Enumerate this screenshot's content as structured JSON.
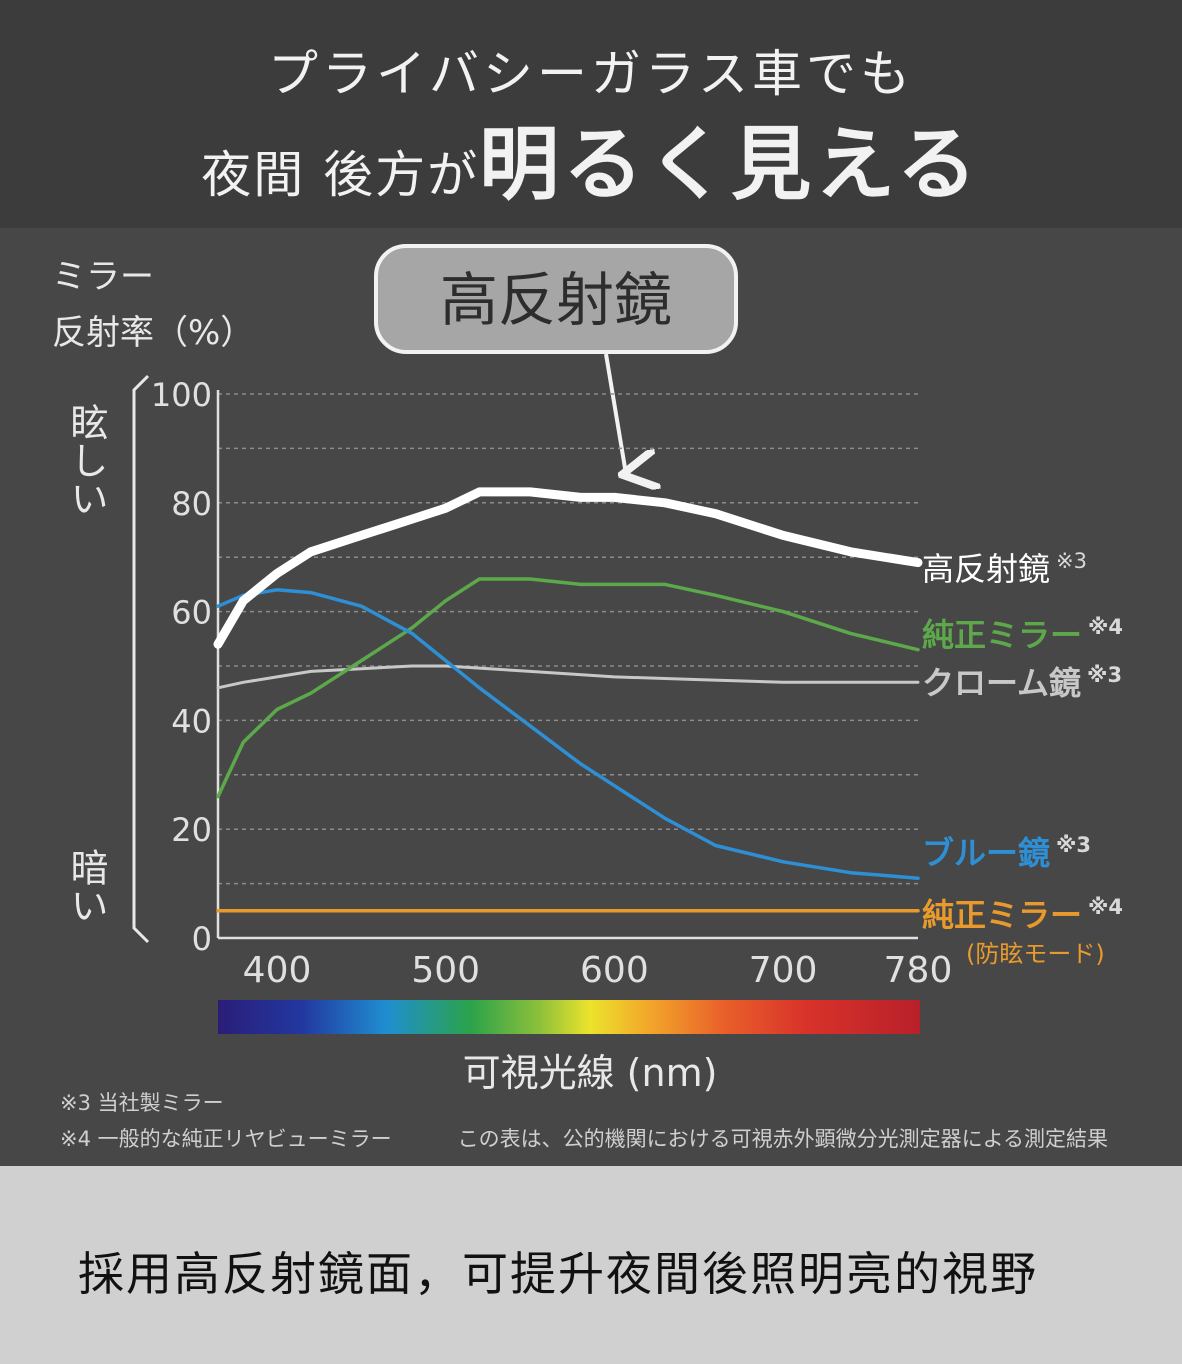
{
  "header": {
    "line1": "プライバシーガラス車でも",
    "line2_small": "夜間 後方が",
    "line2_big": "明るく見える"
  },
  "callout": "高反射鏡",
  "y_axis": {
    "label_line1": "ミラー",
    "label_line2": "反射率（%）",
    "bright": "眩しい",
    "dark": "暗い"
  },
  "x_axis_label": "可視光線 (nm)",
  "notes": {
    "note3": "※3 当社製ミラー",
    "note4": "※4 一般的な純正リヤビューミラー",
    "measurement": "この表は、公的機関における可視赤外顕微分光測定器による測定結果"
  },
  "bottom_caption": "採用高反射鏡面，可提升夜間後照明亮的視野",
  "chart_data": {
    "type": "line",
    "xlim": [
      365,
      780
    ],
    "ylim": [
      0,
      100
    ],
    "grid": true,
    "x_ticks": [
      400,
      500,
      600,
      700,
      780
    ],
    "y_ticks": [
      0,
      20,
      40,
      60,
      80,
      100
    ],
    "xlabel": "可視光線 (nm)",
    "ylabel": "ミラー反射率（%）",
    "series": [
      {
        "name": "高反射鏡",
        "mark": "※3",
        "color": "#ffffff",
        "x": [
          365,
          380,
          400,
          420,
          450,
          480,
          500,
          520,
          550,
          580,
          600,
          630,
          660,
          700,
          740,
          780
        ],
        "y": [
          54,
          62,
          67,
          71,
          74,
          77,
          79,
          82,
          82,
          81,
          81,
          80,
          78,
          74,
          71,
          69
        ]
      },
      {
        "name": "純正ミラー",
        "mark": "※4",
        "color": "#5ca84a",
        "x": [
          365,
          380,
          400,
          420,
          450,
          480,
          500,
          520,
          550,
          580,
          600,
          630,
          660,
          700,
          740,
          780
        ],
        "y": [
          26,
          36,
          42,
          45,
          51,
          57,
          62,
          66,
          66,
          65,
          65,
          65,
          63,
          60,
          56,
          53
        ]
      },
      {
        "name": "クローム鏡",
        "mark": "※3",
        "color": "#c8c8c8",
        "x": [
          365,
          380,
          400,
          420,
          450,
          480,
          500,
          550,
          600,
          650,
          700,
          780
        ],
        "y": [
          46,
          47,
          48,
          49,
          49.5,
          50,
          50,
          49,
          48,
          47.5,
          47,
          47
        ]
      },
      {
        "name": "ブルー鏡",
        "mark": "※3",
        "color": "#2e8fd4",
        "x": [
          365,
          380,
          400,
          420,
          450,
          480,
          500,
          520,
          550,
          580,
          600,
          630,
          660,
          700,
          740,
          780
        ],
        "y": [
          61,
          63,
          64,
          63.5,
          61,
          56,
          51,
          46,
          39,
          32,
          28,
          22,
          17,
          14,
          12,
          11
        ]
      },
      {
        "name": "純正ミラー",
        "mark": "※4",
        "sublabel": "(防眩モード)",
        "color": "#e89a2c",
        "x": [
          365,
          780
        ],
        "y": [
          5,
          5
        ]
      }
    ]
  }
}
